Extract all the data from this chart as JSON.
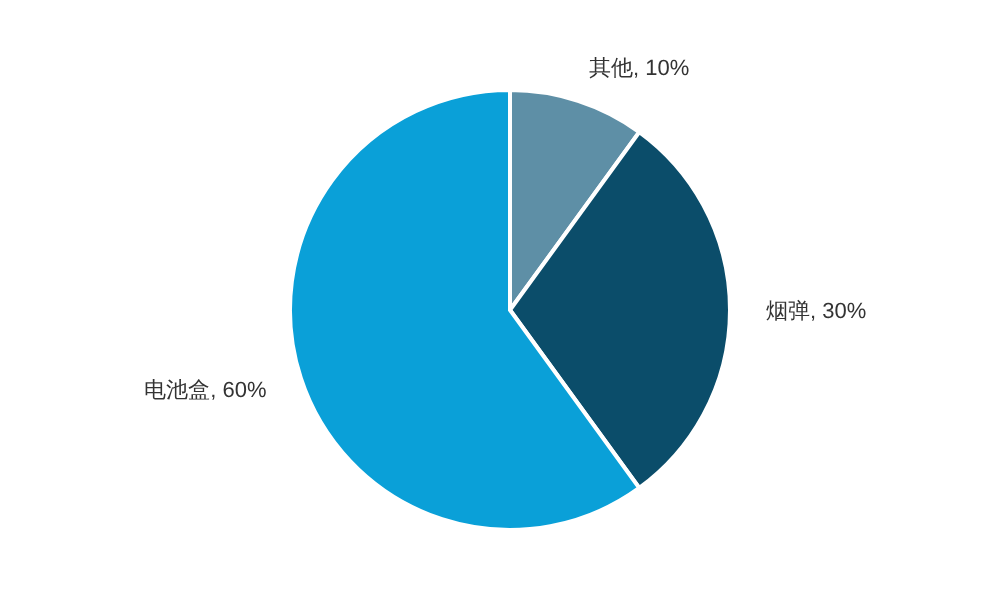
{
  "chart_data": {
    "type": "pie",
    "categories": [
      "其他",
      "烟弹",
      "电池盒"
    ],
    "values": [
      10,
      30,
      60
    ],
    "value_labels": [
      ", 10%",
      ", 30%",
      ", 60%"
    ],
    "colors": [
      "#5e8fa6",
      "#0b4d6a",
      "#0aa0d8"
    ]
  }
}
